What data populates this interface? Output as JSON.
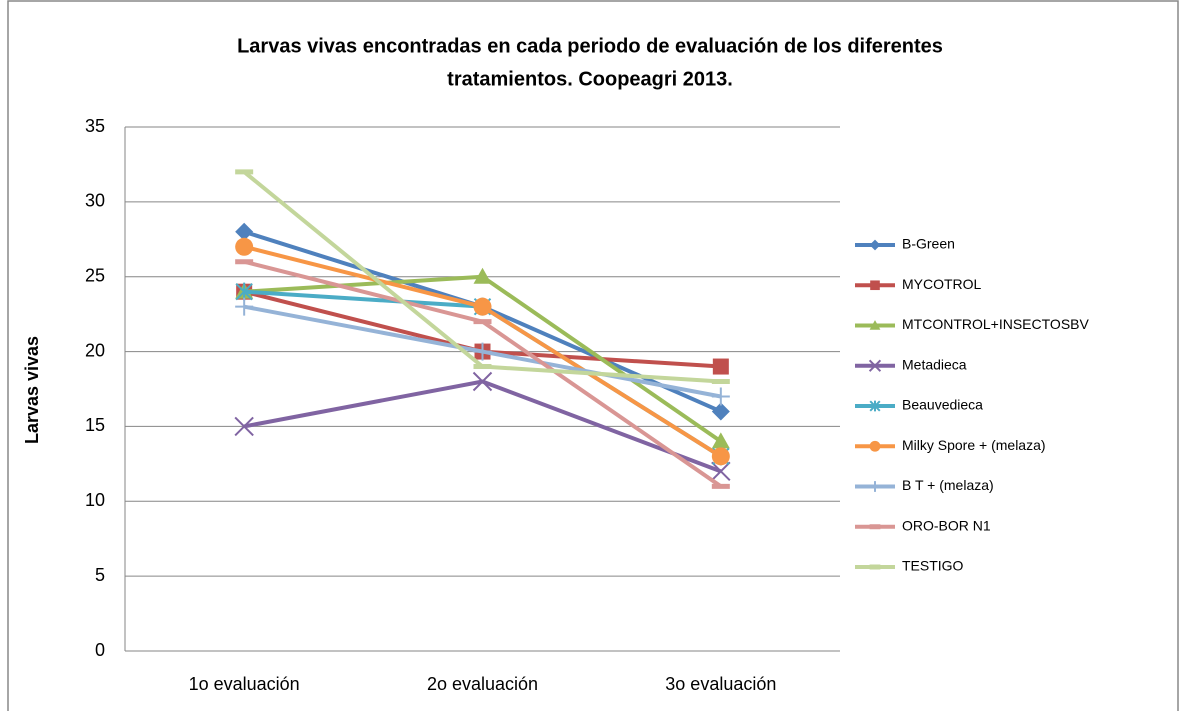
{
  "chart_data": {
    "type": "line",
    "title": [
      "Larvas vivas encontradas en cada periodo de evaluación de los diferentes",
      "tratamientos. Coopeagri 2013."
    ],
    "y_label": "Larvas vivas",
    "categories": [
      "1o evaluación",
      "2o evaluación",
      "3o evaluación"
    ],
    "ylim": [
      0,
      35
    ],
    "yticks": [
      0,
      5,
      10,
      15,
      20,
      25,
      30,
      35
    ],
    "grid": true,
    "legend": "right",
    "series": [
      {
        "name": "B-Green",
        "color": "#4f81bd",
        "marker": "diamond",
        "values": [
          28,
          23,
          16
        ]
      },
      {
        "name": "MYCOTROL",
        "color": "#c0504d",
        "marker": "square",
        "values": [
          24,
          20,
          19
        ]
      },
      {
        "name": "MTCONTROL+INSECTOSBV",
        "color": "#9bbb59",
        "marker": "triangle",
        "values": [
          24,
          25,
          14
        ]
      },
      {
        "name": "Metadieca",
        "color": "#8064a2",
        "marker": "x",
        "values": [
          15,
          18,
          12
        ]
      },
      {
        "name": "Beauvedieca",
        "color": "#4bacc6",
        "marker": "star",
        "values": [
          24,
          23,
          13
        ]
      },
      {
        "name": "Milky Spore + (melaza)",
        "color": "#f79646",
        "marker": "circle",
        "values": [
          27,
          23,
          13
        ]
      },
      {
        "name": "B T + (melaza)",
        "color": "#95b3d7",
        "marker": "plus",
        "values": [
          23,
          20,
          17
        ]
      },
      {
        "name": "ORO-BOR N1",
        "color": "#d99694",
        "marker": "dash",
        "values": [
          26,
          22,
          11
        ]
      },
      {
        "name": "TESTIGO",
        "color": "#c3d69b",
        "marker": "dash",
        "values": [
          32,
          19,
          18
        ]
      }
    ]
  }
}
